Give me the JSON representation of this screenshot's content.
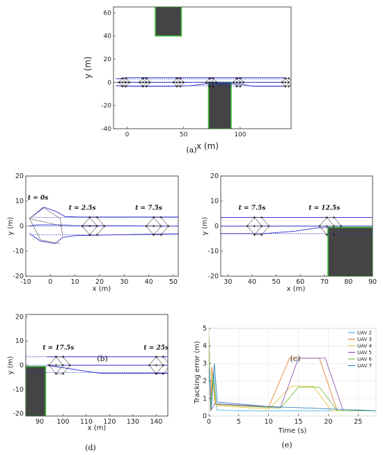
{
  "chart_data": [
    {
      "id": "a",
      "type": "line",
      "caption": "(a)",
      "xlabel": "x (m)",
      "ylabel": "y (m)",
      "xlim": [
        -12,
        145
      ],
      "ylim": [
        -40,
        65
      ],
      "xticks": [
        0,
        50,
        100
      ],
      "yticks": [
        -40,
        -20,
        0,
        20,
        40,
        60
      ],
      "obstacles": [
        {
          "x0": 25,
          "x1": 48,
          "y0": 40,
          "y1": 66
        },
        {
          "x0": 72,
          "x1": 92,
          "y0": -40,
          "y1": 0
        }
      ],
      "lines": [
        {
          "style": "dotted",
          "points": [
            [
              -8,
              3
            ],
            [
              140,
              3
            ]
          ]
        },
        {
          "style": "dotted",
          "points": [
            [
              -8,
              0
            ],
            [
              140,
              0
            ]
          ]
        },
        {
          "style": "dotted",
          "points": [
            [
              -8,
              -3
            ],
            [
              140,
              -3
            ]
          ]
        },
        {
          "style": "solid",
          "points": [
            [
              -10,
              3
            ],
            [
              0,
              4
            ],
            [
              10,
              4
            ],
            [
              140,
              4
            ]
          ]
        },
        {
          "style": "solid",
          "points": [
            [
              -10,
              0
            ],
            [
              140,
              0
            ]
          ]
        },
        {
          "style": "solid",
          "points": [
            [
              -10,
              -3
            ],
            [
              5,
              -3.5
            ],
            [
              40,
              -3.5
            ],
            [
              55,
              -3
            ],
            [
              72,
              -1
            ],
            [
              100,
              -1.5
            ],
            [
              112,
              -3.5
            ],
            [
              140,
              -3.5
            ]
          ]
        }
      ],
      "formations": [
        {
          "cx": -4,
          "cy": 0,
          "dx": 3
        },
        {
          "cx": 14,
          "cy": 0,
          "dx": 3
        },
        {
          "cx": 44,
          "cy": 0,
          "dx": 3
        },
        {
          "cx": 73,
          "cy": 0,
          "dx": 3
        },
        {
          "cx": 97,
          "cy": 0,
          "dx": 3
        },
        {
          "cx": 140,
          "cy": 0,
          "dx": 3
        }
      ]
    },
    {
      "id": "b",
      "type": "line",
      "caption": "(b)",
      "xlabel": "x (m)",
      "ylabel": "y (m)",
      "xlim": [
        -10,
        52
      ],
      "ylim": [
        -20,
        20
      ],
      "xticks": [
        -10,
        0,
        10,
        20,
        30,
        40,
        50
      ],
      "yticks": [
        -20,
        -10,
        0,
        10,
        20
      ],
      "obstacles": [],
      "lines": [
        {
          "style": "dotted",
          "points": [
            [
              -8,
              3.5
            ],
            [
              52,
              3.5
            ]
          ]
        },
        {
          "style": "dotted",
          "points": [
            [
              -8,
              0
            ],
            [
              52,
              0
            ]
          ]
        },
        {
          "style": "dotted",
          "points": [
            [
              -8,
              -3.5
            ],
            [
              52,
              -3.5
            ]
          ]
        },
        {
          "style": "solid",
          "points": [
            [
              -8.5,
              3
            ],
            [
              -2.5,
              7.5
            ],
            [
              2,
              6
            ],
            [
              6,
              3.8
            ],
            [
              12,
              3.6
            ],
            [
              52,
              3.6
            ]
          ]
        },
        {
          "style": "solid",
          "points": [
            [
              -9,
              0
            ],
            [
              -5,
              0.5
            ],
            [
              3,
              0.5
            ],
            [
              10,
              0.2
            ],
            [
              52,
              0
            ]
          ]
        },
        {
          "style": "solid",
          "points": [
            [
              -8.5,
              -3
            ],
            [
              -4,
              -6
            ],
            [
              2,
              -7
            ],
            [
              5,
              -4.5
            ],
            [
              10,
              -3.8
            ],
            [
              52,
              -3
            ]
          ]
        }
      ],
      "connectors": [
        [
          [
            -8.5,
            3
          ],
          [
            -3,
            7.5
          ]
        ],
        [
          [
            -3,
            7.5
          ],
          [
            4,
            3
          ]
        ],
        [
          [
            -8.5,
            3
          ],
          [
            -4,
            -5.5
          ]
        ],
        [
          [
            -4,
            -5.5
          ],
          [
            4,
            -7
          ]
        ],
        [
          [
            -8.5,
            3
          ],
          [
            5,
            0
          ]
        ],
        [
          [
            4,
            3
          ],
          [
            5,
            -4
          ]
        ]
      ],
      "formations": [
        {
          "cx": 16,
          "cy": 0,
          "dx": 3
        },
        {
          "cx": 42,
          "cy": 0,
          "dx": 3
        }
      ],
      "time_labels": [
        {
          "text": "t = 0s",
          "x": -5,
          "y": 10.5
        },
        {
          "text": "t = 2.5s",
          "x": 13,
          "y": 6.5
        },
        {
          "text": "t = 7.5s",
          "x": 40,
          "y": 6.5
        }
      ]
    },
    {
      "id": "c",
      "type": "line",
      "caption": "(c)",
      "xlabel": "x (m)",
      "ylabel": "y (m)",
      "xlim": [
        27,
        90
      ],
      "ylim": [
        -20,
        20
      ],
      "xticks": [
        30,
        40,
        50,
        60,
        70,
        80,
        90
      ],
      "yticks": [
        -20,
        -10,
        0,
        10,
        20
      ],
      "obstacles": [
        {
          "x0": 71.5,
          "x1": 90,
          "y0": -20,
          "y1": -0.5
        }
      ],
      "lines": [
        {
          "style": "dotted",
          "points": [
            [
              27,
              3.5
            ],
            [
              90,
              3.5
            ]
          ]
        },
        {
          "style": "dotted",
          "points": [
            [
              27,
              0
            ],
            [
              90,
              0
            ]
          ]
        },
        {
          "style": "dotted",
          "points": [
            [
              27,
              -3
            ],
            [
              90,
              -3
            ]
          ]
        },
        {
          "style": "solid",
          "points": [
            [
              27,
              3.5
            ],
            [
              90,
              3.5
            ]
          ]
        },
        {
          "style": "solid",
          "points": [
            [
              27,
              0
            ],
            [
              90,
              0
            ]
          ]
        },
        {
          "style": "solid",
          "points": [
            [
              27,
              -3
            ],
            [
              45,
              -3
            ],
            [
              58,
              -2
            ],
            [
              66,
              -0.8
            ],
            [
              72,
              -0.5
            ]
          ]
        }
      ],
      "connectors": [],
      "formations": [
        {
          "cx": 41,
          "cy": 0,
          "dx": 3
        },
        {
          "cx": 71,
          "cy": 0,
          "dx": 3
        }
      ],
      "time_labels": [
        {
          "text": "t = 7.5s",
          "x": 40,
          "y": 6.5
        },
        {
          "text": "t = 12.5s",
          "x": 70,
          "y": 6.5
        }
      ]
    },
    {
      "id": "d",
      "type": "line",
      "caption": "(d)",
      "xlabel": "x (m)",
      "ylabel": "y (m)",
      "xlim": [
        84,
        145
      ],
      "ylim": [
        -21,
        21
      ],
      "xticks": [
        90,
        100,
        110,
        120,
        130,
        140
      ],
      "yticks": [
        -20,
        -10,
        0,
        10,
        20
      ],
      "obstacles": [
        {
          "x0": 84,
          "x1": 92.5,
          "y0": -21,
          "y1": -0.5
        }
      ],
      "lines": [
        {
          "style": "dotted",
          "points": [
            [
              84,
              3.5
            ],
            [
              145,
              3.5
            ]
          ]
        },
        {
          "style": "dotted",
          "points": [
            [
              84,
              0
            ],
            [
              145,
              0
            ]
          ]
        },
        {
          "style": "dotted",
          "points": [
            [
              84,
              -3
            ],
            [
              145,
              -3
            ]
          ]
        },
        {
          "style": "solid",
          "points": [
            [
              93,
              3.5
            ],
            [
              145,
              3.5
            ]
          ]
        },
        {
          "style": "solid",
          "points": [
            [
              93,
              0
            ],
            [
              145,
              0
            ]
          ]
        },
        {
          "style": "solid",
          "points": [
            [
              93,
              0
            ],
            [
              100,
              -1
            ],
            [
              110,
              -2.5
            ],
            [
              116,
              -3.3
            ],
            [
              145,
              -3.3
            ]
          ]
        }
      ],
      "connectors": [],
      "formations": [
        {
          "cx": 97,
          "cy": 0,
          "dx": 3
        },
        {
          "cx": 140,
          "cy": 0,
          "dx": 3
        }
      ],
      "time_labels": [
        {
          "text": "t = 17.5s",
          "x": 98,
          "y": 6.5
        },
        {
          "text": "t = 25s",
          "x": 140,
          "y": 6.5
        }
      ]
    },
    {
      "id": "e",
      "type": "line",
      "caption": "(e)",
      "xlabel": "Time (s)",
      "ylabel": "Tracking error (m)",
      "xlim": [
        0,
        28
      ],
      "ylim": [
        0,
        5
      ],
      "xticks": [
        0,
        5,
        10,
        15,
        20,
        25
      ],
      "yticks": [
        0,
        1,
        2,
        3,
        4,
        5
      ],
      "legend_position": "top-right",
      "series": [
        {
          "name": "UAV 2",
          "color": "#4fb8e8",
          "points": [
            [
              0,
              2.6
            ],
            [
              0.4,
              0.5
            ],
            [
              0.8,
              2.5
            ],
            [
              1.3,
              0.35
            ],
            [
              5,
              0.3
            ],
            [
              25,
              0.3
            ],
            [
              28,
              0.3
            ]
          ]
        },
        {
          "name": "UAV 3",
          "color": "#e8823a",
          "points": [
            [
              0,
              4.9
            ],
            [
              0.25,
              0.3
            ],
            [
              0.5,
              2.8
            ],
            [
              1,
              0.7
            ],
            [
              10,
              0.5
            ],
            [
              13.5,
              3.3
            ],
            [
              18.5,
              3.3
            ],
            [
              21.5,
              0.3
            ],
            [
              28,
              0.3
            ]
          ]
        },
        {
          "name": "UAV 4",
          "color": "#e6c43e",
          "points": [
            [
              0,
              4.8
            ],
            [
              0.3,
              0.35
            ],
            [
              0.6,
              2.2
            ],
            [
              1.2,
              0.6
            ],
            [
              10,
              0.4
            ],
            [
              13.8,
              1.7
            ],
            [
              17.5,
              1.7
            ],
            [
              20.5,
              0.3
            ],
            [
              28,
              0.3
            ]
          ]
        },
        {
          "name": "UAV 5",
          "color": "#8a5cb8",
          "points": [
            [
              0,
              4.5
            ],
            [
              0.3,
              0.3
            ],
            [
              1,
              0.7
            ],
            [
              12,
              0.5
            ],
            [
              15,
              3.3
            ],
            [
              19.5,
              3.3
            ],
            [
              22.5,
              0.3
            ],
            [
              28,
              0.3
            ]
          ]
        },
        {
          "name": "UAV 6",
          "color": "#7cc242",
          "points": [
            [
              0,
              4.6
            ],
            [
              0.3,
              0.3
            ],
            [
              0.7,
              2.4
            ],
            [
              1.2,
              0.65
            ],
            [
              12,
              0.45
            ],
            [
              15,
              1.65
            ],
            [
              18.5,
              1.65
            ],
            [
              21.5,
              0.3
            ],
            [
              28,
              0.3
            ]
          ]
        },
        {
          "name": "UAV 7",
          "color": "#2f7fbf",
          "points": [
            [
              0,
              2.8
            ],
            [
              0.4,
              0.4
            ],
            [
              0.9,
              3.0
            ],
            [
              1.4,
              0.8
            ],
            [
              9.5,
              0.55
            ],
            [
              28,
              0.3
            ]
          ]
        }
      ]
    }
  ]
}
